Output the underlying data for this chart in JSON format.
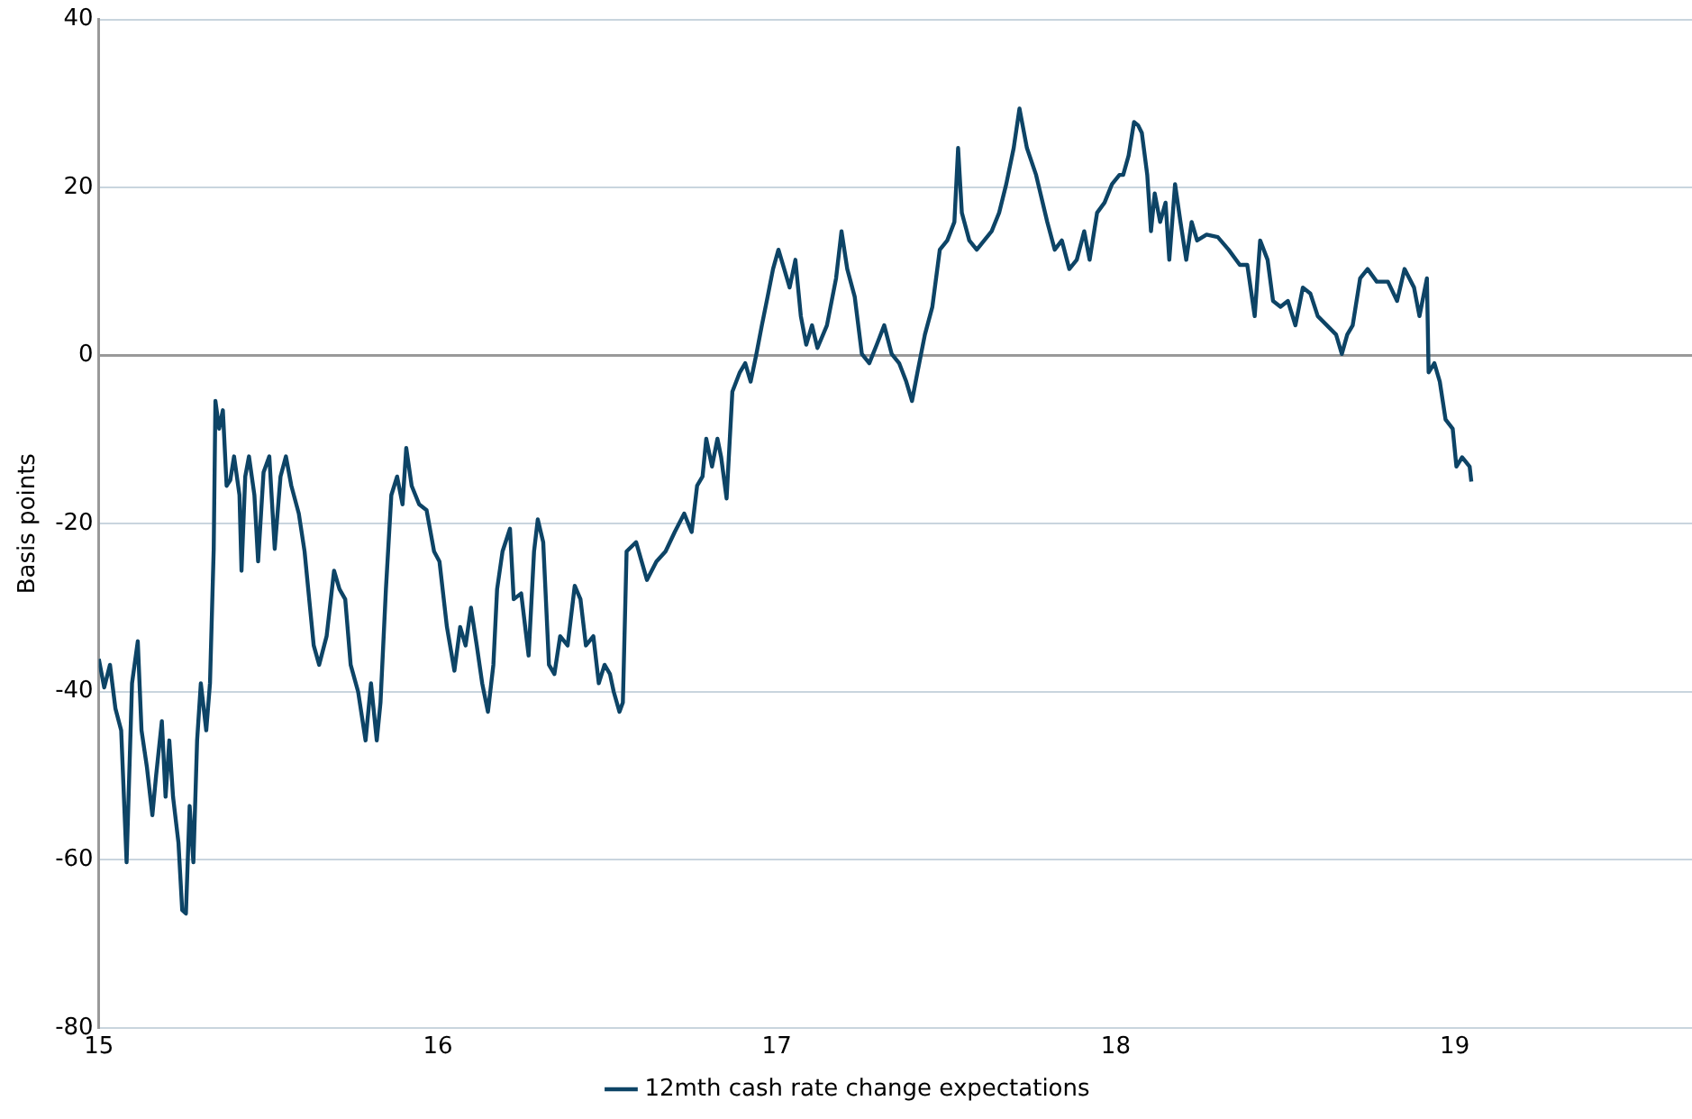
{
  "chart_data": {
    "type": "line",
    "ylabel": "Basis points",
    "xlim": [
      15,
      19.7
    ],
    "xticks": [
      15,
      16,
      17,
      18,
      19
    ],
    "ylim": [
      -80,
      40
    ],
    "yticks": [
      -80,
      -60,
      -40,
      -20,
      0,
      20,
      40
    ],
    "grid": "y",
    "legend": "bottom",
    "marker": "none",
    "line_style": "solid",
    "series": [
      {
        "name": "12mth cash rate change expectations",
        "color": "#0d4466",
        "x": [
          15.0,
          15.016,
          15.033,
          15.049,
          15.066,
          15.082,
          15.098,
          15.115,
          15.126,
          15.142,
          15.158,
          15.169,
          15.186,
          15.197,
          15.208,
          15.219,
          15.235,
          15.246,
          15.257,
          15.268,
          15.279,
          15.29,
          15.301,
          15.317,
          15.328,
          15.339,
          15.344,
          15.355,
          15.366,
          15.377,
          15.388,
          15.399,
          15.415,
          15.421,
          15.432,
          15.443,
          15.459,
          15.47,
          15.486,
          15.503,
          15.519,
          15.536,
          15.552,
          15.568,
          15.59,
          15.607,
          15.634,
          15.65,
          15.672,
          15.694,
          15.71,
          15.727,
          15.743,
          15.765,
          15.787,
          15.803,
          15.82,
          15.831,
          15.847,
          15.863,
          15.88,
          15.896,
          15.907,
          15.923,
          15.945,
          15.967,
          15.989,
          16.005,
          16.027,
          16.049,
          16.066,
          16.082,
          16.098,
          16.115,
          16.131,
          16.148,
          16.164,
          16.175,
          16.191,
          16.213,
          16.224,
          16.246,
          16.268,
          16.284,
          16.295,
          16.311,
          16.328,
          16.344,
          16.361,
          16.383,
          16.404,
          16.421,
          16.437,
          16.459,
          16.475,
          16.492,
          16.508,
          16.519,
          16.536,
          16.546,
          16.557,
          16.585,
          16.617,
          16.645,
          16.672,
          16.699,
          16.727,
          16.749,
          16.765,
          16.781,
          16.792,
          16.809,
          16.825,
          16.836,
          16.852,
          16.869,
          16.891,
          16.907,
          16.923,
          16.94,
          16.956,
          16.973,
          16.989,
          17.005,
          17.022,
          17.038,
          17.055,
          17.071,
          17.087,
          17.104,
          17.12,
          17.148,
          17.175,
          17.191,
          17.208,
          17.23,
          17.251,
          17.273,
          17.295,
          17.317,
          17.339,
          17.361,
          17.382,
          17.399,
          17.415,
          17.437,
          17.459,
          17.481,
          17.503,
          17.524,
          17.535,
          17.546,
          17.568,
          17.59,
          17.612,
          17.634,
          17.656,
          17.677,
          17.699,
          17.716,
          17.738,
          17.765,
          17.798,
          17.82,
          17.841,
          17.863,
          17.885,
          17.907,
          17.923,
          17.945,
          17.967,
          17.989,
          18.011,
          18.022,
          18.038,
          18.054,
          18.066,
          18.077,
          18.093,
          18.104,
          18.115,
          18.131,
          18.147,
          18.158,
          18.175,
          18.191,
          18.208,
          18.224,
          18.24,
          18.268,
          18.301,
          18.333,
          18.366,
          18.388,
          18.41,
          18.426,
          18.448,
          18.464,
          18.486,
          18.508,
          18.53,
          18.552,
          18.574,
          18.596,
          18.623,
          18.65,
          18.667,
          18.683,
          18.699,
          18.721,
          18.743,
          18.77,
          18.803,
          18.83,
          18.852,
          18.88,
          18.896,
          18.918,
          18.923,
          18.94,
          18.956,
          18.973,
          18.994,
          19.005,
          19.022,
          19.044,
          19.049
        ],
        "values": [
          -36.1,
          -39.5,
          -36.8,
          -42,
          -44.6,
          -60.3,
          -39,
          -34,
          -44.6,
          -49,
          -54.7,
          -50,
          -43.5,
          -52.5,
          -45.8,
          -52.5,
          -58,
          -66,
          -66.4,
          -53.6,
          -60.3,
          -45.8,
          -39,
          -44.6,
          -39,
          -23,
          -5.4,
          -8.7,
          -6.5,
          -15.5,
          -14.8,
          -12,
          -16.6,
          -25.6,
          -14.4,
          -12,
          -16.6,
          -24.5,
          -13.9,
          -12,
          -23,
          -14.4,
          -12,
          -15.5,
          -18.8,
          -23.3,
          -34.5,
          -36.8,
          -33.4,
          -25.6,
          -27.8,
          -29,
          -36.8,
          -40,
          -45.8,
          -39,
          -45.8,
          -41.3,
          -27.8,
          -16.6,
          -14.4,
          -17.7,
          -11,
          -15.5,
          -17.7,
          -18.4,
          -23.3,
          -24.5,
          -32.3,
          -37.5,
          -32.3,
          -34.5,
          -30,
          -34.5,
          -39,
          -42.4,
          -36.8,
          -27.8,
          -23.3,
          -20.6,
          -29,
          -28.3,
          -35.7,
          -23.3,
          -19.5,
          -22.2,
          -36.8,
          -37.9,
          -33.4,
          -34.5,
          -27.4,
          -29,
          -34.5,
          -33.4,
          -39,
          -36.8,
          -37.9,
          -40,
          -42.4,
          -41.3,
          -23.3,
          -22.2,
          -26.7,
          -24.5,
          -23.3,
          -21,
          -18.8,
          -21,
          -15.5,
          -14.4,
          -9.9,
          -13.2,
          -9.9,
          -12.1,
          -17,
          -4.3,
          -2,
          -0.9,
          -3.1,
          0.2,
          3.6,
          7,
          10.3,
          12.6,
          10.3,
          8.1,
          11.4,
          4.7,
          1.3,
          3.6,
          0.9,
          3.6,
          9.2,
          14.8,
          10.3,
          7,
          0.2,
          -0.9,
          1.3,
          3.6,
          0.2,
          -0.9,
          -3.1,
          -5.4,
          -2,
          2.5,
          5.8,
          12.6,
          13.7,
          15.9,
          24.7,
          17,
          13.7,
          12.6,
          13.7,
          14.8,
          17,
          20.4,
          24.7,
          29.4,
          24.7,
          21.5,
          15.9,
          12.6,
          13.7,
          10.3,
          11.4,
          14.8,
          11.4,
          17,
          18.2,
          20.4,
          21.5,
          21.5,
          23.8,
          27.8,
          27.4,
          26.5,
          21.5,
          14.8,
          19.3,
          15.9,
          18.2,
          11.4,
          20.4,
          15.9,
          11.4,
          15.9,
          13.7,
          14.4,
          14.1,
          12.6,
          10.8,
          10.8,
          4.7,
          13.7,
          11.4,
          6.5,
          5.8,
          6.5,
          3.6,
          8.1,
          7.4,
          4.7,
          3.6,
          2.5,
          0.2,
          2.5,
          3.6,
          9.2,
          10.3,
          8.8,
          8.8,
          6.5,
          10.3,
          8.1,
          4.7,
          9.2,
          -2,
          -0.9,
          -3.1,
          -7.6,
          -8.7,
          -13.2,
          -12.1,
          -13.2,
          -15
        ]
      }
    ]
  }
}
